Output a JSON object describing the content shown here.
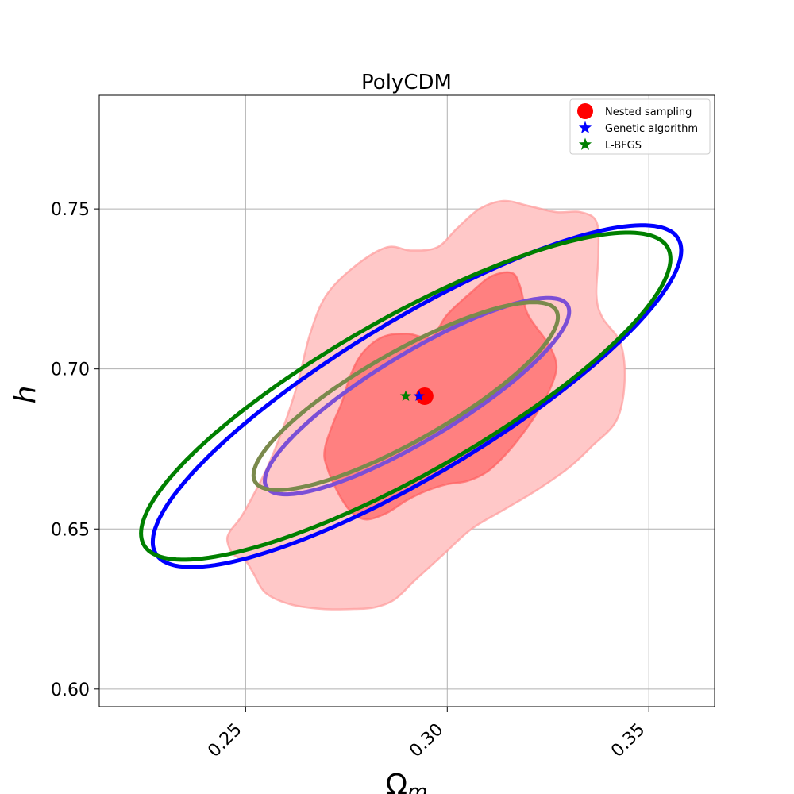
{
  "chart_data": {
    "type": "scatter",
    "title": "PolyCDM",
    "xlabel": "Ω",
    "xlabel_sub": "m",
    "ylabel": "h",
    "xlim": [
      0.2137,
      0.3663
    ],
    "ylim": [
      0.5945,
      0.7855
    ],
    "xticks": [
      0.25,
      0.3,
      0.35
    ],
    "xtick_labels": [
      "0.25",
      "0.30",
      "0.35"
    ],
    "yticks": [
      0.6,
      0.65,
      0.7,
      0.75
    ],
    "ytick_labels": [
      "0.60",
      "0.65",
      "0.70",
      "0.75"
    ],
    "grid": true,
    "legend_position": "top-right",
    "points": [
      {
        "name": "Nested sampling",
        "x": 0.2944,
        "y": 0.6915,
        "marker": "circle",
        "color": "#ff0000"
      },
      {
        "name": "Genetic algorithm",
        "x": 0.293,
        "y": 0.6915,
        "marker": "star",
        "color": "#0000ff"
      },
      {
        "name": "L-BFGS",
        "x": 0.2897,
        "y": 0.6915,
        "marker": "star",
        "color": "#008000"
      }
    ],
    "filled_regions": [
      {
        "level": "outer",
        "color": "#ffc8c8",
        "edge": "#ff9a9a",
        "x": [
          0.2975,
          0.3025,
          0.308,
          0.314,
          0.32,
          0.327,
          0.333,
          0.337,
          0.3375,
          0.337,
          0.3385,
          0.343,
          0.344,
          0.342,
          0.336,
          0.33,
          0.322,
          0.314,
          0.306,
          0.299,
          0.292,
          0.287,
          0.282,
          0.277,
          0.269,
          0.261,
          0.255,
          0.252,
          0.25,
          0.247,
          0.2455,
          0.246,
          0.249,
          0.2525,
          0.256,
          0.26,
          0.263,
          0.266,
          0.27,
          0.277,
          0.285,
          0.291
        ],
        "y": [
          0.738,
          0.744,
          0.75,
          0.7525,
          0.751,
          0.749,
          0.749,
          0.746,
          0.736,
          0.723,
          0.716,
          0.708,
          0.696,
          0.684,
          0.676,
          0.669,
          0.662,
          0.656,
          0.65,
          0.642,
          0.634,
          0.628,
          0.6255,
          0.625,
          0.625,
          0.6265,
          0.63,
          0.636,
          0.64,
          0.642,
          0.646,
          0.649,
          0.654,
          0.662,
          0.671,
          0.684,
          0.696,
          0.711,
          0.723,
          0.732,
          0.738,
          0.737
        ]
      },
      {
        "level": "inner",
        "color": "#ff8080",
        "edge": "#ff6060",
        "x": [
          0.296,
          0.3,
          0.306,
          0.311,
          0.316,
          0.318,
          0.32,
          0.325,
          0.327,
          0.3265,
          0.324,
          0.32,
          0.315,
          0.31,
          0.305,
          0.3,
          0.295,
          0.29,
          0.285,
          0.28,
          0.2765,
          0.274,
          0.2715,
          0.27,
          0.2695,
          0.27,
          0.272,
          0.274,
          0.276,
          0.279,
          0.284,
          0.29
        ],
        "y": [
          0.71,
          0.717,
          0.724,
          0.729,
          0.73,
          0.726,
          0.717,
          0.708,
          0.702,
          0.697,
          0.69,
          0.682,
          0.674,
          0.668,
          0.665,
          0.664,
          0.662,
          0.659,
          0.655,
          0.653,
          0.655,
          0.659,
          0.665,
          0.67,
          0.673,
          0.677,
          0.684,
          0.69,
          0.698,
          0.705,
          0.71,
          0.711
        ]
      }
    ],
    "ellipses": [
      {
        "name": "Genetic algorithm",
        "level": "outer",
        "color": "#0000ff",
        "cx": 0.2925,
        "cy": 0.6915,
        "a": 0.0815,
        "b": 0.0224,
        "angle_deg": 38.2
      },
      {
        "name": "Genetic algorithm",
        "level": "inner",
        "color": "#7b4fd6",
        "cx": 0.2925,
        "cy": 0.6915,
        "a": 0.047,
        "b": 0.0125,
        "angle_deg": 38.2
      },
      {
        "name": "L-BFGS",
        "level": "outer",
        "color": "#008000",
        "cx": 0.2897,
        "cy": 0.6915,
        "a": 0.08,
        "b": 0.0228,
        "angle_deg": 36.6
      },
      {
        "name": "L-BFGS",
        "level": "inner",
        "color": "#7a8a4c",
        "cx": 0.2897,
        "cy": 0.6915,
        "a": 0.046,
        "b": 0.013,
        "angle_deg": 36.6
      }
    ]
  }
}
